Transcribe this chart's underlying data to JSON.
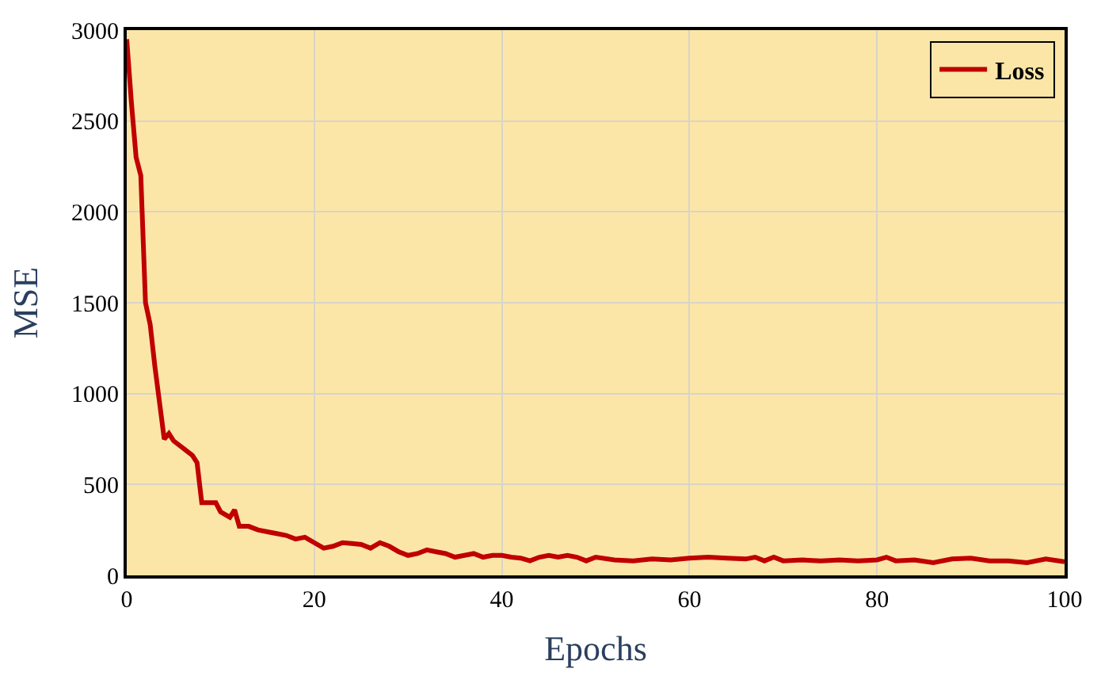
{
  "chart_data": {
    "type": "line",
    "xlabel": "Epochs",
    "ylabel": "MSE",
    "x": [
      0,
      0.5,
      1,
      1.5,
      2,
      2.5,
      3,
      3.5,
      4,
      4.5,
      5,
      6,
      7,
      7.5,
      8,
      8.5,
      9.5,
      10,
      11,
      11.5,
      12,
      13,
      14,
      15,
      16,
      17,
      18,
      19,
      20,
      21,
      22,
      23,
      24,
      25,
      26,
      27,
      28,
      29,
      30,
      31,
      32,
      33,
      34,
      35,
      36,
      37,
      38,
      39,
      40,
      41,
      42,
      43,
      44,
      45,
      46,
      47,
      48,
      49,
      50,
      52,
      54,
      56,
      58,
      60,
      62,
      64,
      66,
      67,
      68,
      69,
      70,
      72,
      74,
      76,
      78,
      80,
      81,
      82,
      84,
      86,
      88,
      90,
      92,
      94,
      96,
      98,
      100
    ],
    "series": [
      {
        "name": "Loss",
        "color": "#c00000",
        "values": [
          2950,
          2600,
          2300,
          2200,
          1500,
          1380,
          1150,
          950,
          750,
          780,
          740,
          700,
          660,
          620,
          400,
          400,
          400,
          350,
          320,
          360,
          270,
          270,
          250,
          240,
          230,
          220,
          200,
          210,
          180,
          150,
          160,
          180,
          175,
          170,
          150,
          180,
          160,
          130,
          110,
          120,
          140,
          130,
          120,
          100,
          110,
          120,
          100,
          110,
          110,
          100,
          95,
          80,
          100,
          110,
          100,
          110,
          100,
          80,
          100,
          85,
          80,
          90,
          85,
          95,
          100,
          95,
          90,
          100,
          80,
          100,
          80,
          85,
          80,
          85,
          80,
          85,
          100,
          80,
          85,
          70,
          90,
          95,
          80,
          80,
          70,
          90,
          75
        ]
      }
    ],
    "xlim": [
      0,
      100
    ],
    "xticks": [
      0,
      20,
      40,
      60,
      80,
      100
    ],
    "ylim": [
      0,
      3000
    ],
    "yticks": [
      0,
      500,
      1000,
      1500,
      2000,
      2500,
      3000
    ],
    "grid": true,
    "legend": "top right",
    "marker": "none",
    "line_style": "solid"
  }
}
